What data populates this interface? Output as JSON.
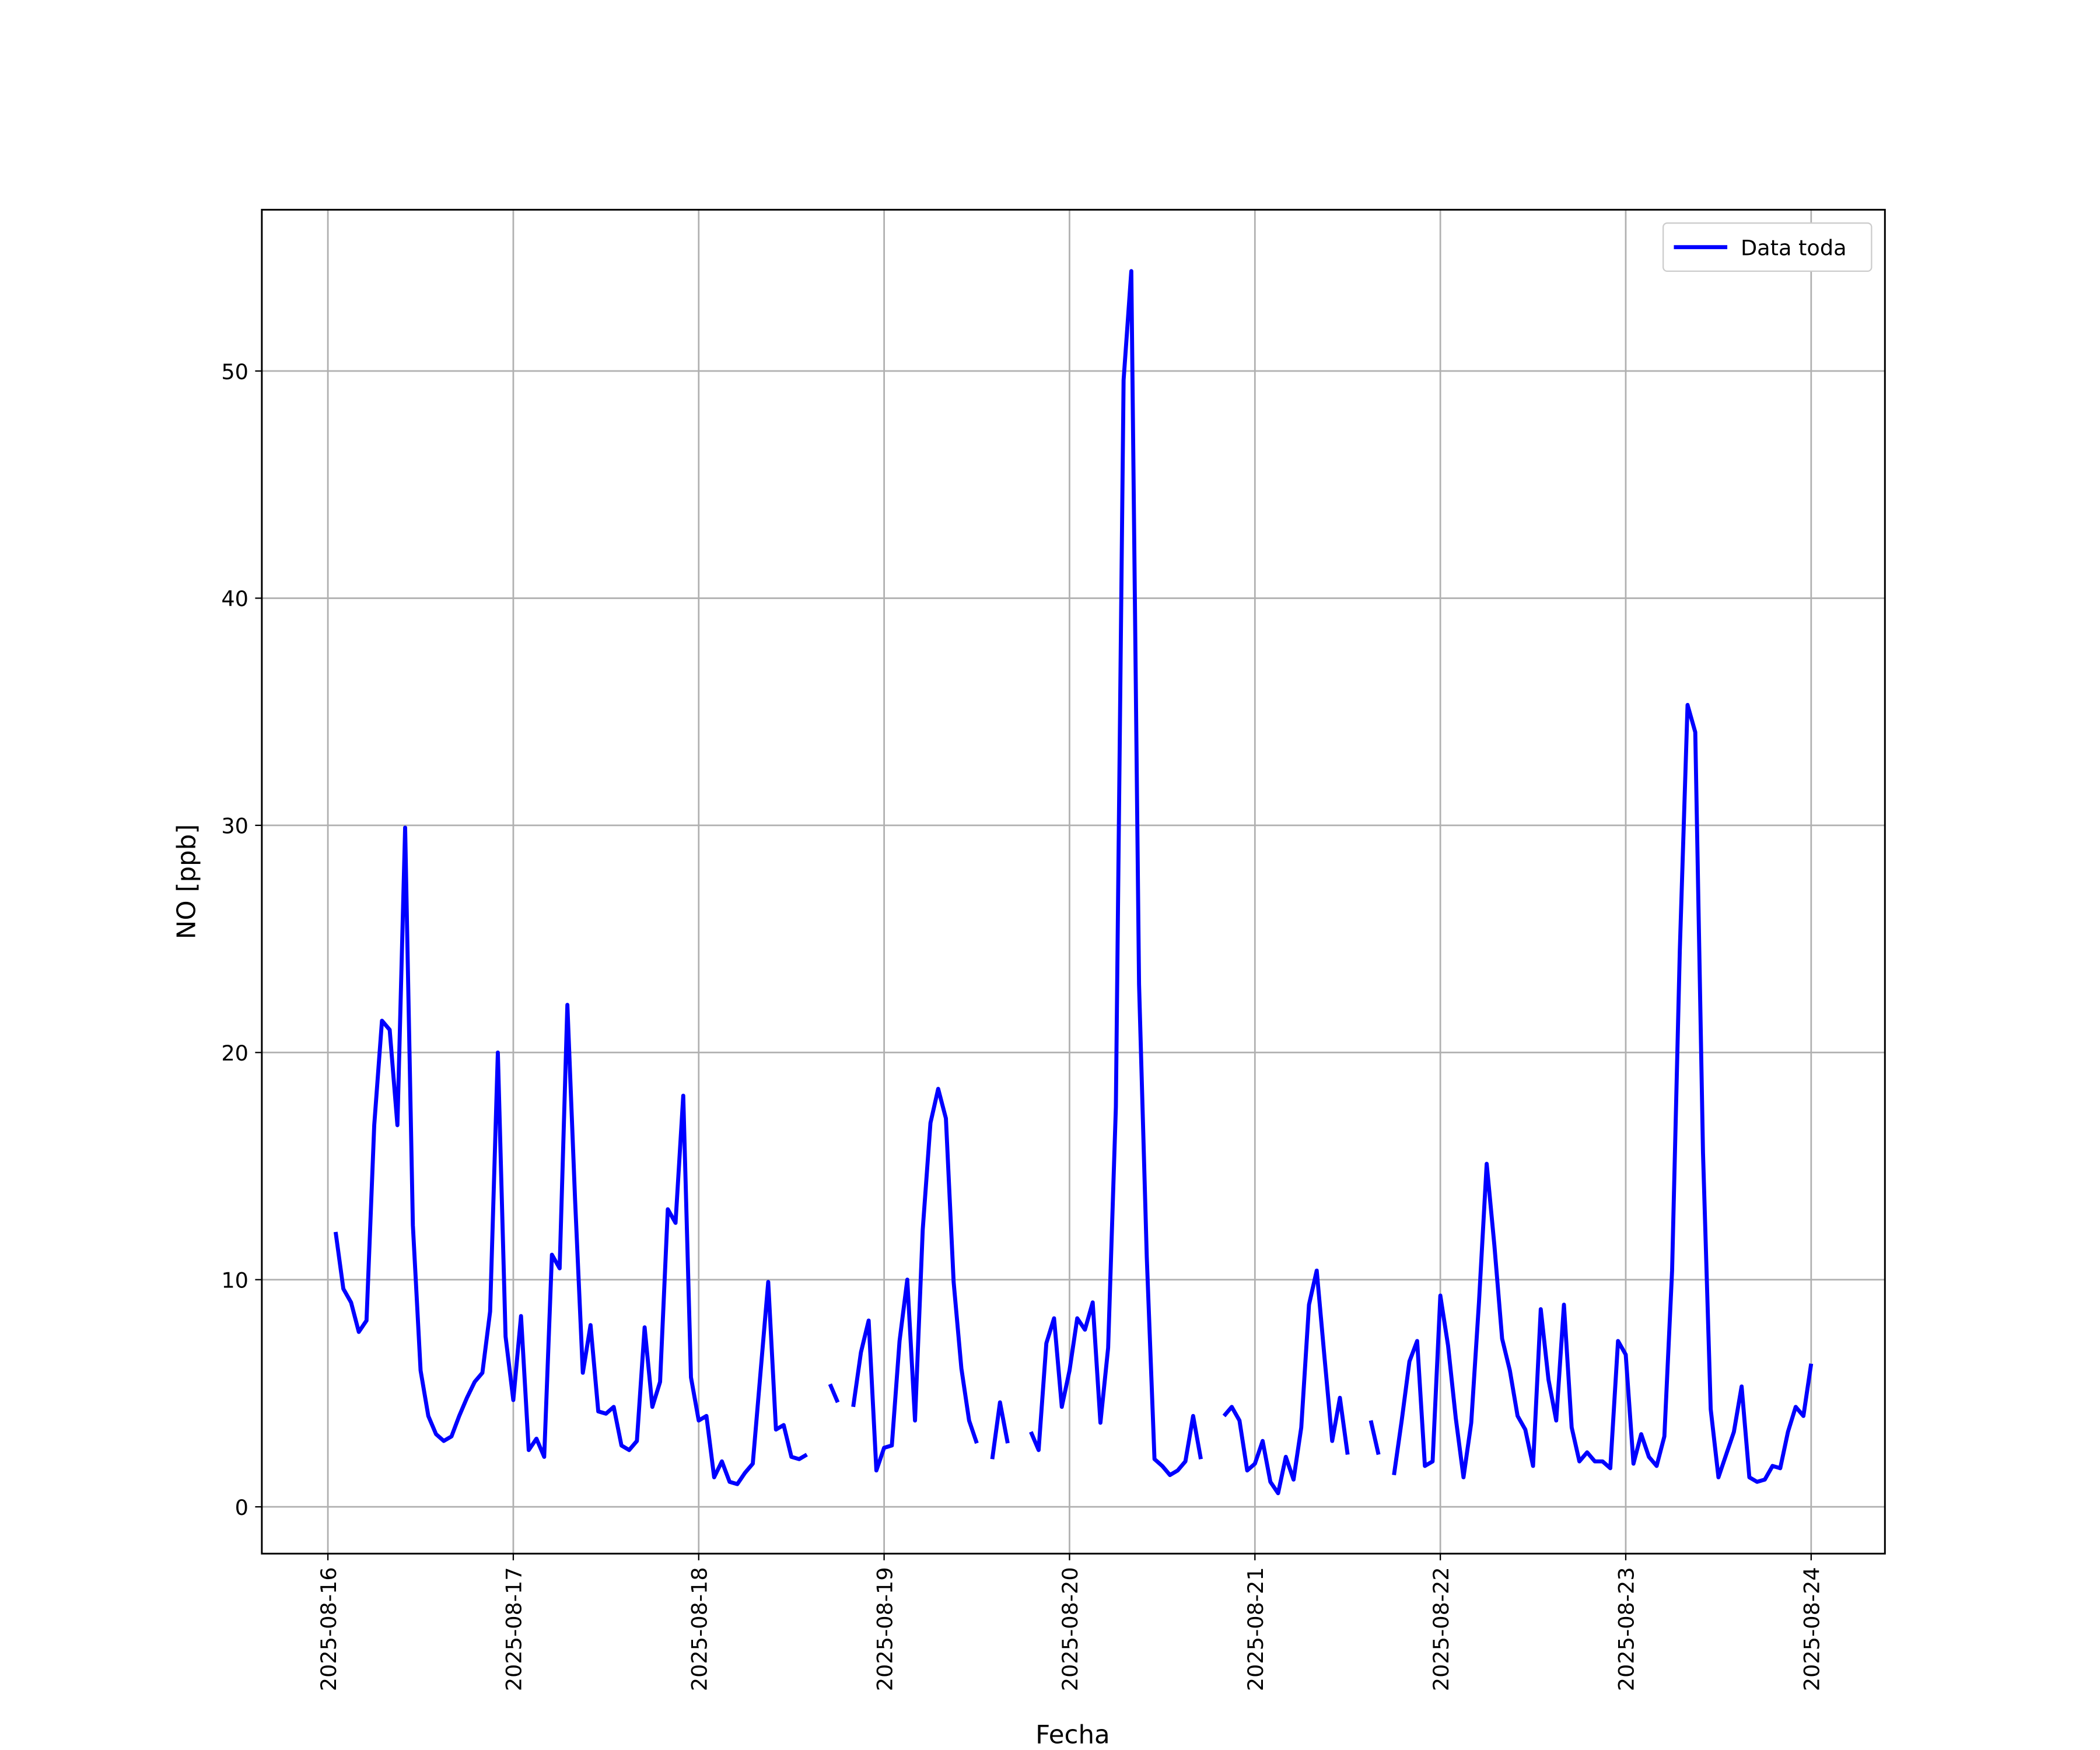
{
  "chart_data": {
    "type": "line",
    "xlabel": "Fecha",
    "ylabel": "NO [ppb]",
    "legend": "upper right",
    "grid": true,
    "xlim": [
      "2025-08-15 15:27",
      "2025-08-24 09:33"
    ],
    "xticks": [
      "2025-08-16",
      "2025-08-17",
      "2025-08-18",
      "2025-08-19",
      "2025-08-20",
      "2025-08-21",
      "2025-08-22",
      "2025-08-23",
      "2025-08-24"
    ],
    "ylim": [
      -2.06,
      57.1
    ],
    "yticks": [
      0,
      10,
      20,
      30,
      40,
      50
    ],
    "x": [
      "2025-08-16 01:00",
      "2025-08-16 02:00",
      "2025-08-16 03:00",
      "2025-08-16 04:00",
      "2025-08-16 05:00",
      "2025-08-16 06:00",
      "2025-08-16 07:00",
      "2025-08-16 08:00",
      "2025-08-16 09:00",
      "2025-08-16 10:00",
      "2025-08-16 11:00",
      "2025-08-16 12:00",
      "2025-08-16 13:00",
      "2025-08-16 14:00",
      "2025-08-16 15:00",
      "2025-08-16 16:00",
      "2025-08-16 17:00",
      "2025-08-16 18:00",
      "2025-08-16 19:00",
      "2025-08-16 20:00",
      "2025-08-16 21:00",
      "2025-08-16 22:00",
      "2025-08-16 23:00",
      "2025-08-17 00:00",
      "2025-08-17 01:00",
      "2025-08-17 02:00",
      "2025-08-17 03:00",
      "2025-08-17 04:00",
      "2025-08-17 05:00",
      "2025-08-17 06:00",
      "2025-08-17 07:00",
      "2025-08-17 08:00",
      "2025-08-17 09:00",
      "2025-08-17 10:00",
      "2025-08-17 11:00",
      "2025-08-17 12:00",
      "2025-08-17 13:00",
      "2025-08-17 14:00",
      "2025-08-17 15:00",
      "2025-08-17 16:00",
      "2025-08-17 17:00",
      "2025-08-17 18:00",
      "2025-08-17 19:00",
      "2025-08-17 20:00",
      "2025-08-17 21:00",
      "2025-08-17 22:00",
      "2025-08-17 23:00",
      "2025-08-18 00:00",
      "2025-08-18 01:00",
      "2025-08-18 02:00",
      "2025-08-18 03:00",
      "2025-08-18 04:00",
      "2025-08-18 05:00",
      "2025-08-18 06:00",
      "2025-08-18 07:00",
      "2025-08-18 08:00",
      "2025-08-18 09:00",
      "2025-08-18 10:00",
      "2025-08-18 11:00",
      "2025-08-18 12:00",
      "2025-08-18 13:00",
      "2025-08-18 14:00",
      "2025-08-18 15:00",
      "2025-08-18 16:00",
      "2025-08-18 17:00",
      "2025-08-18 18:00",
      "2025-08-18 19:00",
      "2025-08-18 20:00",
      "2025-08-18 21:00",
      "2025-08-18 22:00",
      "2025-08-18 23:00",
      "2025-08-19 00:00",
      "2025-08-19 01:00",
      "2025-08-19 02:00",
      "2025-08-19 03:00",
      "2025-08-19 04:00",
      "2025-08-19 05:00",
      "2025-08-19 06:00",
      "2025-08-19 07:00",
      "2025-08-19 08:00",
      "2025-08-19 09:00",
      "2025-08-19 10:00",
      "2025-08-19 11:00",
      "2025-08-19 12:00",
      "2025-08-19 13:00",
      "2025-08-19 14:00",
      "2025-08-19 15:00",
      "2025-08-19 16:00",
      "2025-08-19 17:00",
      "2025-08-19 18:00",
      "2025-08-19 19:00",
      "2025-08-19 20:00",
      "2025-08-19 21:00",
      "2025-08-19 22:00",
      "2025-08-19 23:00",
      "2025-08-20 00:00",
      "2025-08-20 01:00",
      "2025-08-20 02:00",
      "2025-08-20 03:00",
      "2025-08-20 04:00",
      "2025-08-20 05:00",
      "2025-08-20 06:00",
      "2025-08-20 07:00",
      "2025-08-20 08:00",
      "2025-08-20 09:00",
      "2025-08-20 10:00",
      "2025-08-20 11:00",
      "2025-08-20 12:00",
      "2025-08-20 13:00",
      "2025-08-20 14:00",
      "2025-08-20 15:00",
      "2025-08-20 16:00",
      "2025-08-20 17:00",
      "2025-08-20 18:00",
      "2025-08-20 19:00",
      "2025-08-20 20:00",
      "2025-08-20 21:00",
      "2025-08-20 22:00",
      "2025-08-20 23:00",
      "2025-08-21 00:00",
      "2025-08-21 01:00",
      "2025-08-21 02:00",
      "2025-08-21 03:00",
      "2025-08-21 04:00",
      "2025-08-21 05:00",
      "2025-08-21 06:00",
      "2025-08-21 07:00",
      "2025-08-21 08:00",
      "2025-08-21 09:00",
      "2025-08-21 10:00",
      "2025-08-21 11:00",
      "2025-08-21 12:00",
      "2025-08-21 13:00",
      "2025-08-21 14:00",
      "2025-08-21 15:00",
      "2025-08-21 16:00",
      "2025-08-21 17:00",
      "2025-08-21 18:00",
      "2025-08-21 19:00",
      "2025-08-21 20:00",
      "2025-08-21 21:00",
      "2025-08-21 22:00",
      "2025-08-21 23:00",
      "2025-08-22 00:00",
      "2025-08-22 01:00",
      "2025-08-22 02:00",
      "2025-08-22 03:00",
      "2025-08-22 04:00",
      "2025-08-22 05:00",
      "2025-08-22 06:00",
      "2025-08-22 07:00",
      "2025-08-22 08:00",
      "2025-08-22 09:00",
      "2025-08-22 10:00",
      "2025-08-22 11:00",
      "2025-08-22 12:00",
      "2025-08-22 13:00",
      "2025-08-22 14:00",
      "2025-08-22 15:00",
      "2025-08-22 16:00",
      "2025-08-22 17:00",
      "2025-08-22 18:00",
      "2025-08-22 19:00",
      "2025-08-22 20:00",
      "2025-08-22 21:00",
      "2025-08-22 22:00",
      "2025-08-22 23:00",
      "2025-08-23 00:00",
      "2025-08-23 01:00",
      "2025-08-23 02:00",
      "2025-08-23 03:00",
      "2025-08-23 04:00",
      "2025-08-23 05:00",
      "2025-08-23 06:00",
      "2025-08-23 07:00",
      "2025-08-23 08:00",
      "2025-08-23 09:00",
      "2025-08-23 10:00",
      "2025-08-23 11:00",
      "2025-08-23 12:00",
      "2025-08-23 13:00",
      "2025-08-23 14:00",
      "2025-08-23 15:00",
      "2025-08-23 16:00",
      "2025-08-23 17:00",
      "2025-08-23 18:00",
      "2025-08-23 19:00",
      "2025-08-23 20:00",
      "2025-08-23 21:00",
      "2025-08-23 22:00",
      "2025-08-23 23:00",
      "2025-08-24 00:00"
    ],
    "series": [
      {
        "name": "Data toda",
        "color": "#0000ff",
        "values": [
          12.1,
          9.6,
          9.0,
          7.7,
          8.2,
          16.8,
          21.4,
          21.0,
          16.8,
          29.9,
          12.4,
          6.0,
          4.0,
          3.2,
          2.9,
          3.1,
          4.0,
          4.8,
          5.5,
          5.9,
          8.6,
          20.0,
          7.5,
          4.7,
          8.4,
          2.5,
          3.0,
          2.2,
          11.1,
          10.5,
          22.1,
          13.5,
          5.9,
          8.0,
          4.2,
          4.1,
          4.4,
          2.7,
          2.5,
          2.9,
          7.9,
          4.4,
          5.5,
          13.1,
          12.5,
          18.1,
          5.7,
          3.8,
          4.0,
          1.3,
          2.0,
          1.1,
          1.0,
          1.5,
          1.9,
          5.9,
          9.9,
          3.4,
          3.6,
          2.2,
          2.1,
          2.3,
          null,
          null,
          5.4,
          4.6,
          null,
          4.4,
          6.8,
          8.2,
          1.6,
          2.6,
          2.7,
          7.3,
          10.0,
          3.8,
          12.2,
          16.9,
          18.4,
          17.1,
          9.9,
          6.1,
          3.8,
          2.8,
          null,
          2.1,
          4.6,
          2.8,
          null,
          null,
          3.3,
          2.5,
          7.2,
          8.3,
          4.4,
          6.0,
          8.3,
          7.8,
          9.0,
          3.7,
          7.0,
          17.6,
          49.6,
          54.4,
          23.0,
          11.0,
          2.1,
          1.8,
          1.4,
          1.6,
          2.0,
          4.0,
          2.1,
          null,
          null,
          4.0,
          4.4,
          3.8,
          1.6,
          1.9,
          2.9,
          1.1,
          0.6,
          2.2,
          1.2,
          3.5,
          8.9,
          10.4,
          6.6,
          2.9,
          4.8,
          2.3,
          null,
          null,
          3.8,
          2.3,
          null,
          1.4,
          3.8,
          6.4,
          7.3,
          1.8,
          2.0,
          9.3,
          7.1,
          3.9,
          1.3,
          3.7,
          9.0,
          15.1,
          11.5,
          7.4,
          6.0,
          4.0,
          3.4,
          1.8,
          8.7,
          5.6,
          3.8,
          8.9,
          3.5,
          2.0,
          2.4,
          2.0,
          2.0,
          1.7,
          7.3,
          6.7,
          1.9,
          3.2,
          2.2,
          1.8,
          3.1,
          10.4,
          24.5,
          35.3,
          34.1,
          15.6,
          4.3,
          1.3,
          2.3,
          3.3,
          5.3,
          1.3,
          1.1,
          1.2,
          1.8,
          1.7,
          3.3,
          4.4,
          4.0,
          6.3
        ]
      }
    ]
  }
}
